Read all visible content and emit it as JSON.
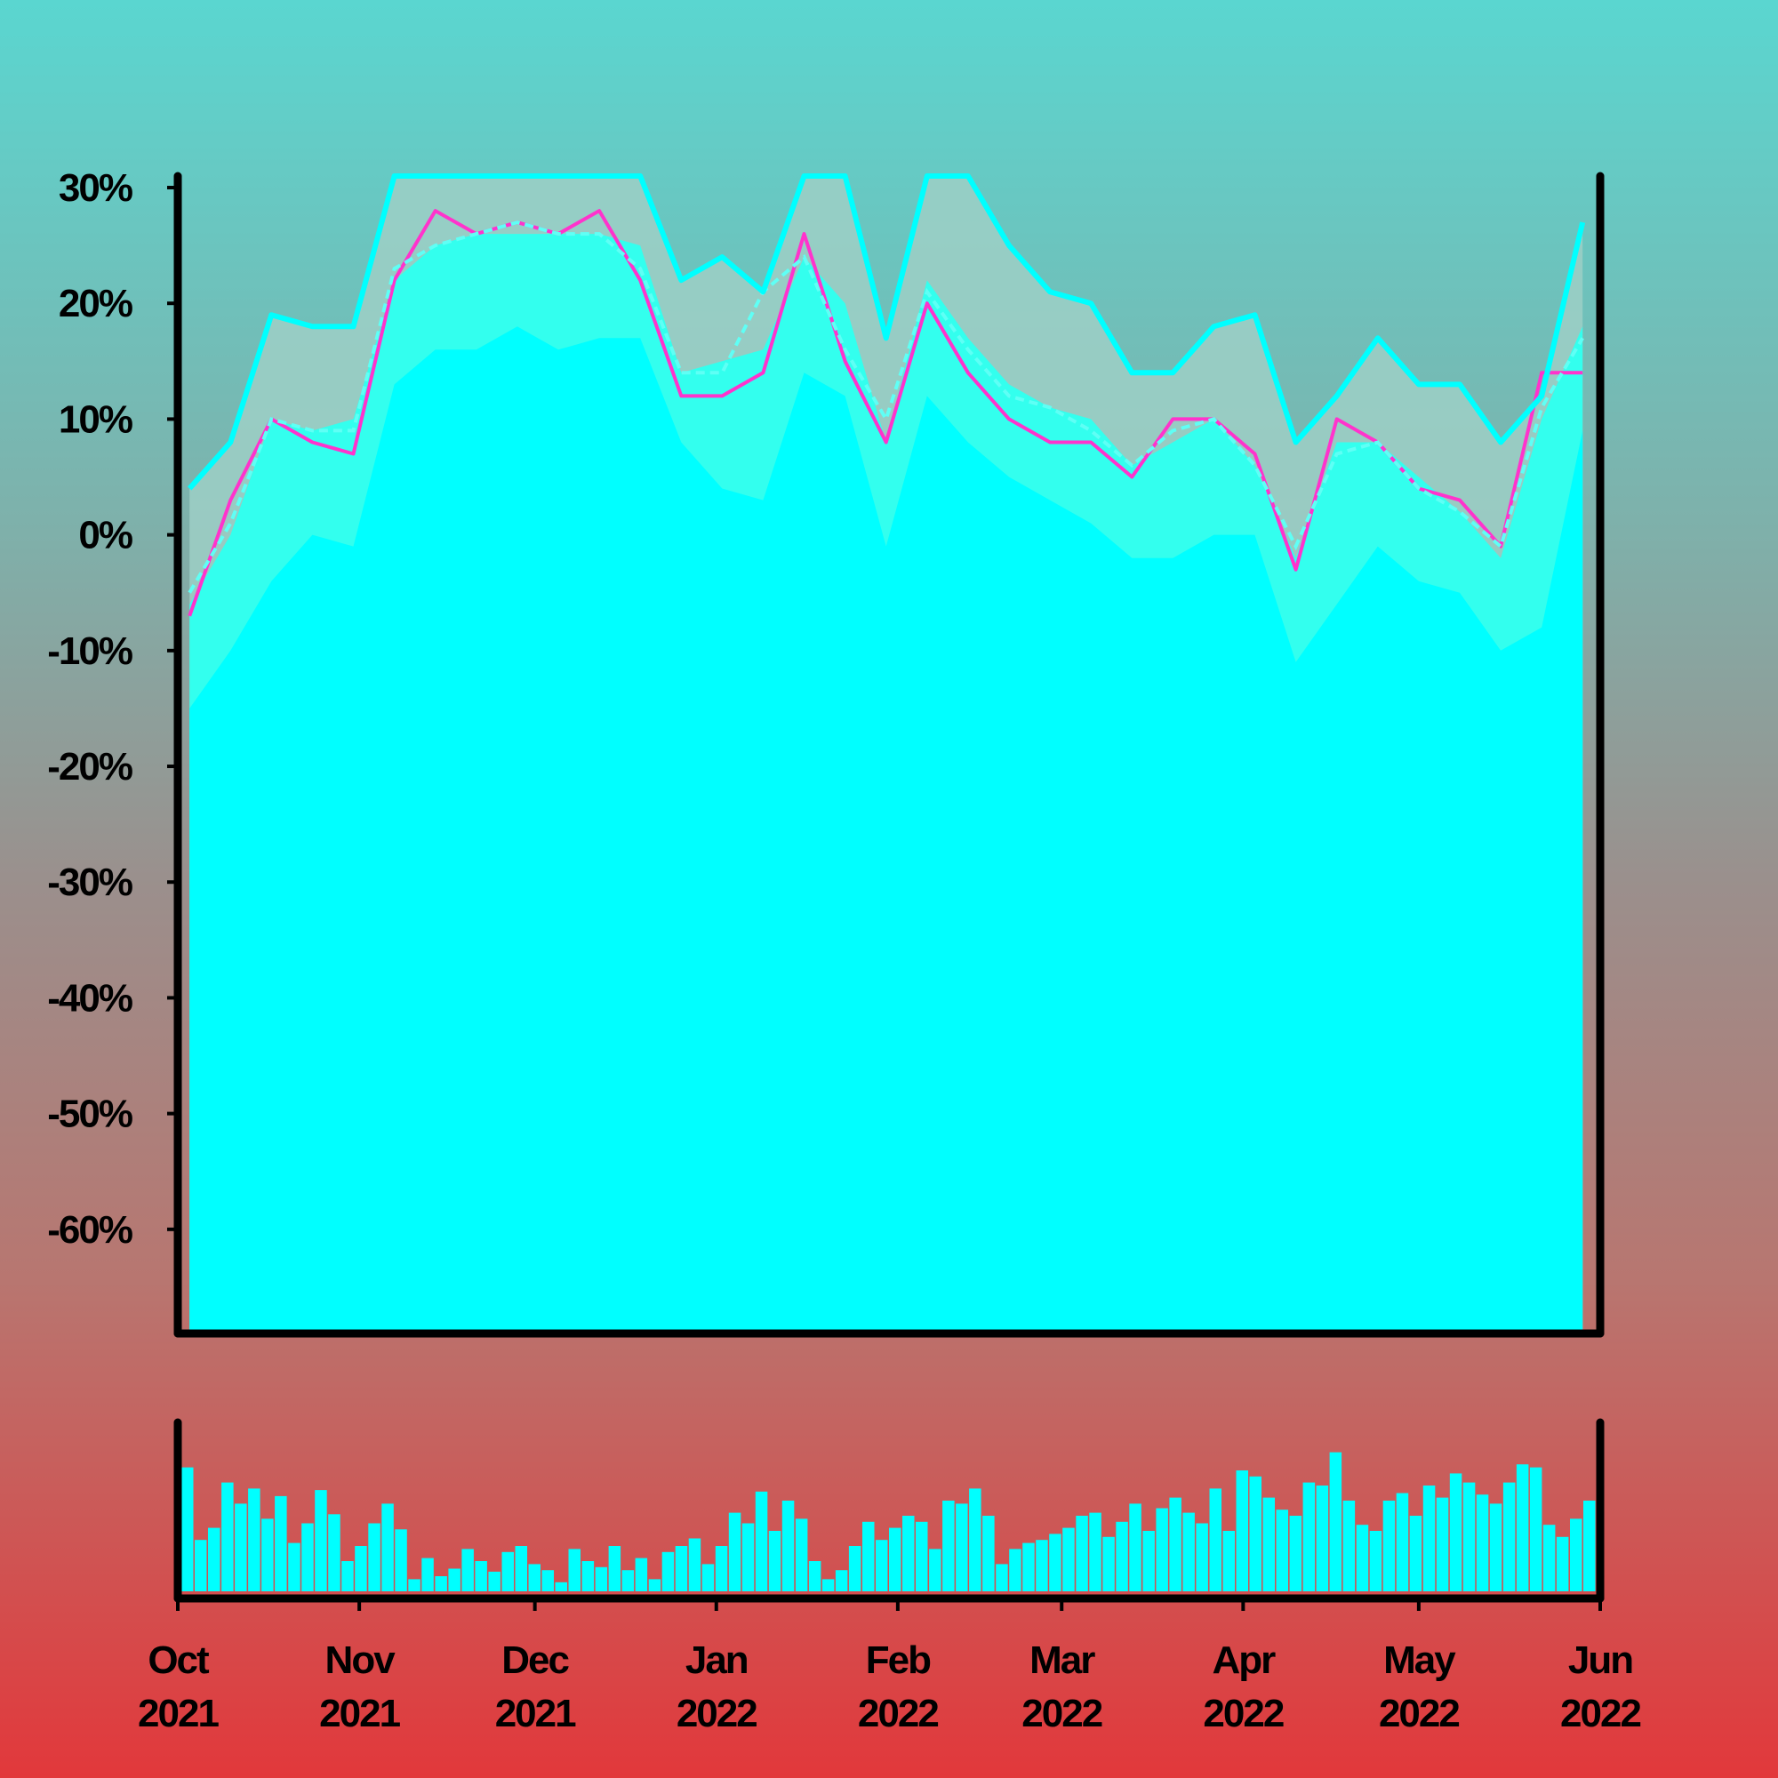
{
  "chart_data": {
    "type": "area",
    "yaxis": {
      "ticks": [
        "30%",
        "20%",
        "10%",
        "0%",
        "-10%",
        "-20%",
        "-30%",
        "-40%",
        "-50%",
        "-60%"
      ],
      "tick_values": [
        30,
        20,
        10,
        0,
        -10,
        -20,
        -30,
        -40,
        -50,
        -60
      ],
      "ylim": [
        -69,
        31
      ]
    },
    "xaxis": {
      "ticks": [
        {
          "month": "Oct",
          "year": "2021",
          "date": "2021-10-01"
        },
        {
          "month": "Nov",
          "year": "2021",
          "date": "2021-11-01"
        },
        {
          "month": "Dec",
          "year": "2021",
          "date": "2021-12-01"
        },
        {
          "month": "Jan",
          "year": "2022",
          "date": "2022-01-01"
        },
        {
          "month": "Feb",
          "year": "2022",
          "date": "2022-02-01"
        },
        {
          "month": "Mar",
          "year": "2022",
          "date": "2022-03-01"
        },
        {
          "month": "Apr",
          "year": "2022",
          "date": "2022-04-01"
        },
        {
          "month": "May",
          "year": "2022",
          "date": "2022-05-01"
        },
        {
          "month": "Jun",
          "year": "2022",
          "date": "2022-06-01"
        }
      ],
      "xlim": [
        "2021-10-01",
        "2022-06-01"
      ]
    },
    "series": [
      {
        "role": "daily value (magenta line)",
        "x": [
          "2021-10-03",
          "2021-10-10",
          "2021-10-17",
          "2021-10-24",
          "2021-10-31",
          "2021-11-07",
          "2021-11-14",
          "2021-11-21",
          "2021-11-28",
          "2021-12-05",
          "2021-12-12",
          "2021-12-19",
          "2021-12-26",
          "2022-01-02",
          "2022-01-09",
          "2022-01-16",
          "2022-01-23",
          "2022-01-30",
          "2022-02-06",
          "2022-02-13",
          "2022-02-20",
          "2022-02-27",
          "2022-03-06",
          "2022-03-13",
          "2022-03-20",
          "2022-03-27",
          "2022-04-03",
          "2022-04-10",
          "2022-04-17",
          "2022-04-24",
          "2022-05-01",
          "2022-05-08",
          "2022-05-15",
          "2022-05-22",
          "2022-05-29"
        ],
        "y": [
          -7,
          3,
          10,
          8,
          7,
          22,
          28,
          26,
          27,
          26,
          28,
          22,
          12,
          12,
          14,
          26,
          15,
          8,
          20,
          14,
          10,
          8,
          8,
          5,
          10,
          10,
          7,
          -3,
          10,
          8,
          4,
          3,
          -1,
          14,
          14
        ]
      },
      {
        "role": "moving average (dashed line)",
        "x": [
          "2021-10-03",
          "2021-10-10",
          "2021-10-17",
          "2021-10-24",
          "2021-10-31",
          "2021-11-07",
          "2021-11-14",
          "2021-11-21",
          "2021-11-28",
          "2021-12-05",
          "2021-12-12",
          "2021-12-19",
          "2021-12-26",
          "2022-01-02",
          "2022-01-09",
          "2022-01-16",
          "2022-01-23",
          "2022-01-30",
          "2022-02-06",
          "2022-02-13",
          "2022-02-20",
          "2022-02-27",
          "2022-03-06",
          "2022-03-13",
          "2022-03-20",
          "2022-03-27",
          "2022-04-03",
          "2022-04-10",
          "2022-04-17",
          "2022-04-24",
          "2022-05-01",
          "2022-05-08",
          "2022-05-15",
          "2022-05-22",
          "2022-05-29"
        ],
        "y": [
          -5,
          1,
          10,
          9,
          9,
          23,
          25,
          26,
          27,
          26,
          26,
          23,
          14,
          14,
          21,
          24,
          16,
          10,
          21,
          16,
          12,
          11,
          9,
          6,
          9,
          10,
          6,
          -1,
          7,
          8,
          4,
          2,
          -1,
          11,
          17
        ]
      },
      {
        "role": "upper band (solid cyan line, capped at top)",
        "x": [
          "2021-10-03",
          "2021-10-10",
          "2021-10-17",
          "2021-10-24",
          "2021-10-31",
          "2021-11-07",
          "2021-11-14",
          "2021-11-21",
          "2021-11-28",
          "2021-12-05",
          "2021-12-12",
          "2021-12-19",
          "2021-12-26",
          "2022-01-02",
          "2022-01-09",
          "2022-01-16",
          "2022-01-23",
          "2022-01-30",
          "2022-02-06",
          "2022-02-13",
          "2022-02-20",
          "2022-02-27",
          "2022-03-06",
          "2022-03-13",
          "2022-03-20",
          "2022-03-27",
          "2022-04-03",
          "2022-04-10",
          "2022-04-17",
          "2022-04-24",
          "2022-05-01",
          "2022-05-08",
          "2022-05-15",
          "2022-05-22",
          "2022-05-29"
        ],
        "y": [
          4,
          8,
          19,
          18,
          18,
          31,
          31,
          31,
          31,
          31,
          31,
          31,
          22,
          24,
          21,
          31,
          31,
          17,
          31,
          31,
          25,
          21,
          20,
          14,
          14,
          18,
          19,
          8,
          12,
          17,
          13,
          13,
          8,
          12,
          27
        ]
      },
      {
        "role": "inner band (light cyan area)",
        "x": [
          "2021-10-03",
          "2021-10-10",
          "2021-10-17",
          "2021-10-24",
          "2021-10-31",
          "2021-11-07",
          "2021-11-14",
          "2021-11-21",
          "2021-11-28",
          "2021-12-05",
          "2021-12-12",
          "2021-12-19",
          "2021-12-26",
          "2022-01-02",
          "2022-01-09",
          "2022-01-16",
          "2022-01-23",
          "2022-01-30",
          "2022-02-06",
          "2022-02-13",
          "2022-02-20",
          "2022-02-27",
          "2022-03-06",
          "2022-03-13",
          "2022-03-20",
          "2022-03-27",
          "2022-04-03",
          "2022-04-10",
          "2022-04-17",
          "2022-04-24",
          "2022-05-01",
          "2022-05-08",
          "2022-05-15",
          "2022-05-22",
          "2022-05-29"
        ],
        "y": [
          -6,
          0,
          10,
          9,
          10,
          22,
          25,
          26,
          26,
          26,
          26,
          25,
          14,
          15,
          16,
          24,
          20,
          8,
          22,
          17,
          13,
          11,
          10,
          6,
          8,
          10,
          6,
          -2,
          8,
          8,
          5,
          2,
          -2,
          10,
          18
        ]
      },
      {
        "role": "lower band (solid cyan area)",
        "x": [
          "2021-10-03",
          "2021-10-10",
          "2021-10-17",
          "2021-10-24",
          "2021-10-31",
          "2021-11-07",
          "2021-11-14",
          "2021-11-21",
          "2021-11-28",
          "2021-12-05",
          "2021-12-12",
          "2021-12-19",
          "2021-12-26",
          "2022-01-02",
          "2022-01-09",
          "2022-01-16",
          "2022-01-23",
          "2022-01-30",
          "2022-02-06",
          "2022-02-13",
          "2022-02-20",
          "2022-02-27",
          "2022-03-06",
          "2022-03-13",
          "2022-03-20",
          "2022-03-27",
          "2022-04-03",
          "2022-04-10",
          "2022-04-17",
          "2022-04-24",
          "2022-05-01",
          "2022-05-08",
          "2022-05-15",
          "2022-05-22",
          "2022-05-29"
        ],
        "y": [
          -15,
          -10,
          -4,
          0,
          -1,
          13,
          16,
          16,
          18,
          16,
          17,
          17,
          8,
          4,
          3,
          14,
          12,
          -1,
          12,
          8,
          5,
          3,
          1,
          -2,
          -2,
          0,
          0,
          -11,
          -6,
          -1,
          -4,
          -5,
          -10,
          -8,
          9
        ]
      }
    ],
    "volume": {
      "role": "daily volume bars (relative height 0-1)",
      "values": [
        0.82,
        0.34,
        0.42,
        0.72,
        0.58,
        0.68,
        0.48,
        0.63,
        0.32,
        0.45,
        0.67,
        0.51,
        0.2,
        0.3,
        0.45,
        0.58,
        0.41,
        0.08,
        0.22,
        0.1,
        0.15,
        0.28,
        0.2,
        0.13,
        0.26,
        0.3,
        0.18,
        0.14,
        0.06,
        0.28,
        0.2,
        0.16,
        0.3,
        0.14,
        0.22,
        0.08,
        0.26,
        0.3,
        0.35,
        0.18,
        0.3,
        0.52,
        0.45,
        0.66,
        0.4,
        0.6,
        0.48,
        0.2,
        0.08,
        0.14,
        0.3,
        0.46,
        0.34,
        0.42,
        0.5,
        0.46,
        0.28,
        0.6,
        0.58,
        0.68,
        0.5,
        0.18,
        0.28,
        0.32,
        0.34,
        0.38,
        0.42,
        0.5,
        0.52,
        0.36,
        0.46,
        0.58,
        0.4,
        0.55,
        0.62,
        0.52,
        0.45,
        0.68,
        0.4,
        0.8,
        0.76,
        0.62,
        0.54,
        0.5,
        0.72,
        0.7,
        0.92,
        0.6,
        0.44,
        0.4,
        0.6,
        0.65,
        0.5,
        0.7,
        0.62,
        0.78,
        0.72,
        0.64,
        0.58,
        0.72,
        0.84,
        0.82,
        0.44,
        0.36,
        0.48,
        0.6
      ]
    }
  }
}
